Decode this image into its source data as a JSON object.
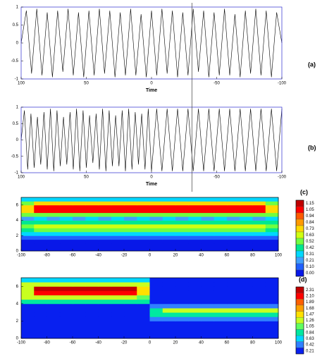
{
  "cursor_x": -31,
  "chart_data": [
    {
      "type": "line",
      "label": "(a)",
      "xlabel": "Time",
      "color": "#000000",
      "xlim": [
        100,
        -100
      ],
      "xticks": [
        100,
        50,
        0,
        -50,
        -100
      ],
      "ylim": [
        -1,
        1
      ],
      "yticks": [
        1,
        0.5,
        0,
        -0.5,
        -1
      ],
      "x": [
        100,
        96,
        92,
        88,
        84,
        80,
        76,
        72,
        68,
        64,
        60,
        56,
        52,
        48,
        44,
        40,
        36,
        32,
        28,
        24,
        20,
        16,
        12,
        8,
        4,
        0,
        -4,
        -8,
        -12,
        -16,
        -20,
        -24,
        -28,
        -32,
        -36,
        -40,
        -44,
        -48,
        -52,
        -56,
        -60,
        -64,
        -68,
        -72,
        -76,
        -80,
        -84,
        -88,
        -92,
        -96,
        -100
      ],
      "values": [
        0,
        0.9,
        -0.85,
        0.95,
        -0.9,
        0.85,
        -0.95,
        0.9,
        -0.8,
        0.95,
        -0.9,
        0.85,
        -0.95,
        0.9,
        -0.9,
        0.95,
        -0.85,
        0.9,
        -0.95,
        0.85,
        -0.9,
        0.95,
        -0.9,
        0.8,
        -0.95,
        0.9,
        -0.9,
        0.95,
        -0.85,
        0.9,
        -0.95,
        0.85,
        -0.9,
        0.95,
        -0.8,
        0.9,
        -0.95,
        0.85,
        -0.9,
        0.95,
        -0.9,
        0.8,
        -0.95,
        0.9,
        -0.85,
        0.95,
        -0.9,
        0.9,
        -0.95,
        0.85,
        0
      ]
    },
    {
      "type": "line",
      "label": "(b)",
      "xlabel": "Time",
      "color": "#000000",
      "xlim": [
        100,
        -100
      ],
      "xticks": [
        100,
        50,
        0,
        -50,
        -100
      ],
      "ylim": [
        -1,
        1
      ],
      "yticks": [
        1,
        0.5,
        0,
        -0.5,
        -1
      ],
      "x": [
        100,
        97.5,
        95,
        92.5,
        90,
        87.5,
        85,
        82.5,
        80,
        77.5,
        75,
        72.5,
        70,
        67.5,
        65,
        62.5,
        60,
        57.5,
        55,
        52.5,
        50,
        47.5,
        45,
        42.5,
        40,
        37.5,
        35,
        32.5,
        30,
        27.5,
        25,
        22.5,
        20,
        17.5,
        15,
        12.5,
        10,
        7.5,
        5,
        2.5,
        0,
        -4,
        -8,
        -12,
        -16,
        -20,
        -24,
        -28,
        -32,
        -36,
        -40,
        -44,
        -48,
        -52,
        -56,
        -60,
        -64,
        -68,
        -72,
        -76,
        -80,
        -84,
        -88,
        -92,
        -96,
        -100
      ],
      "values": [
        0,
        0.9,
        -0.9,
        0.8,
        -0.85,
        0.7,
        -0.75,
        0.85,
        -0.9,
        0.95,
        -0.95,
        0.9,
        -0.8,
        0.7,
        -0.75,
        0.85,
        -0.9,
        0.95,
        -0.95,
        0.9,
        -0.85,
        0.75,
        -0.7,
        0.8,
        -0.9,
        0.95,
        -0.95,
        0.9,
        -0.8,
        0.75,
        -0.8,
        0.9,
        -0.95,
        0.95,
        -0.9,
        0.85,
        -0.75,
        0.8,
        -0.9,
        0.95,
        -0.95,
        0.95,
        -0.95,
        0.95,
        -0.95,
        0.95,
        -0.95,
        0.95,
        -0.95,
        0.95,
        -0.95,
        0.95,
        -0.95,
        0.95,
        -0.95,
        0.95,
        -0.95,
        0.95,
        -0.95,
        0.95,
        -0.95,
        0.95,
        -0.95,
        0.95,
        -0.95,
        0.95
      ]
    },
    {
      "type": "heatmap",
      "label": "(c)",
      "xlim": [
        -100,
        100
      ],
      "xticks": [
        -100,
        -80,
        -60,
        -40,
        -20,
        0,
        20,
        40,
        60,
        80,
        100
      ],
      "ylim": [
        0,
        7
      ],
      "yticks": [
        0,
        2,
        4,
        6
      ],
      "x": [
        -95,
        -85,
        -75,
        -65,
        -55,
        -45,
        -35,
        -25,
        -15,
        -5,
        5,
        15,
        25,
        35,
        45,
        55,
        65,
        75,
        85,
        95
      ],
      "y": [
        0.25,
        0.75,
        1.25,
        1.75,
        2.25,
        2.75,
        3.25,
        3.75,
        4.25,
        4.75,
        5.25,
        5.75,
        6.25,
        6.75
      ],
      "z": [
        [
          0.05,
          0.05,
          0.05,
          0.05,
          0.05,
          0.05,
          0.05,
          0.05,
          0.05,
          0.05,
          0.05,
          0.05,
          0.05,
          0.05,
          0.05,
          0.05,
          0.05,
          0.05,
          0.05,
          0.05
        ],
        [
          0.05,
          0.05,
          0.05,
          0.05,
          0.05,
          0.05,
          0.05,
          0.05,
          0.05,
          0.05,
          0.05,
          0.05,
          0.05,
          0.05,
          0.05,
          0.05,
          0.05,
          0.05,
          0.05,
          0.05
        ],
        [
          0.05,
          0.05,
          0.05,
          0.05,
          0.05,
          0.05,
          0.05,
          0.05,
          0.05,
          0.05,
          0.05,
          0.05,
          0.05,
          0.05,
          0.05,
          0.05,
          0.05,
          0.05,
          0.05,
          0.05
        ],
        [
          0.15,
          0.15,
          0.15,
          0.15,
          0.15,
          0.15,
          0.15,
          0.15,
          0.15,
          0.15,
          0.15,
          0.15,
          0.15,
          0.15,
          0.15,
          0.15,
          0.15,
          0.15,
          0.15,
          0.15
        ],
        [
          0.35,
          0.35,
          0.35,
          0.35,
          0.35,
          0.35,
          0.35,
          0.35,
          0.35,
          0.35,
          0.35,
          0.35,
          0.35,
          0.35,
          0.35,
          0.35,
          0.35,
          0.35,
          0.35,
          0.35
        ],
        [
          0.5,
          0.6,
          0.6,
          0.6,
          0.6,
          0.6,
          0.6,
          0.6,
          0.6,
          0.6,
          0.6,
          0.6,
          0.6,
          0.6,
          0.6,
          0.6,
          0.6,
          0.6,
          0.6,
          0.5
        ],
        [
          0.55,
          0.65,
          0.65,
          0.65,
          0.65,
          0.65,
          0.65,
          0.65,
          0.65,
          0.65,
          0.65,
          0.65,
          0.65,
          0.65,
          0.65,
          0.65,
          0.65,
          0.65,
          0.65,
          0.55
        ],
        [
          0.45,
          0.45,
          0.45,
          0.45,
          0.45,
          0.45,
          0.45,
          0.45,
          0.45,
          0.45,
          0.45,
          0.45,
          0.45,
          0.45,
          0.45,
          0.45,
          0.45,
          0.45,
          0.45,
          0.45
        ],
        [
          0.3,
          0.4,
          0.3,
          0.4,
          0.3,
          0.4,
          0.3,
          0.4,
          0.3,
          0.4,
          0.3,
          0.4,
          0.3,
          0.4,
          0.3,
          0.4,
          0.3,
          0.4,
          0.3,
          0.4
        ],
        [
          0.55,
          0.6,
          0.6,
          0.6,
          0.6,
          0.6,
          0.6,
          0.6,
          0.6,
          0.6,
          0.6,
          0.6,
          0.6,
          0.6,
          0.6,
          0.6,
          0.6,
          0.6,
          0.6,
          0.55
        ],
        [
          0.75,
          1.1,
          1.1,
          1.1,
          1.1,
          1.1,
          1.1,
          1.1,
          1.1,
          1.1,
          1.1,
          1.1,
          1.1,
          1.1,
          1.1,
          1.1,
          1.1,
          1.1,
          1.1,
          0.75
        ],
        [
          0.8,
          1.12,
          1.12,
          1.12,
          1.12,
          1.12,
          1.12,
          1.12,
          1.12,
          1.12,
          1.12,
          1.12,
          1.12,
          1.12,
          1.12,
          1.12,
          1.12,
          1.12,
          1.12,
          0.8
        ],
        [
          0.6,
          0.75,
          0.75,
          0.75,
          0.75,
          0.75,
          0.75,
          0.75,
          0.75,
          0.75,
          0.75,
          0.75,
          0.75,
          0.75,
          0.75,
          0.75,
          0.75,
          0.75,
          0.75,
          0.6
        ],
        [
          0.4,
          0.4,
          0.4,
          0.4,
          0.4,
          0.4,
          0.4,
          0.4,
          0.4,
          0.4,
          0.4,
          0.4,
          0.4,
          0.4,
          0.4,
          0.4,
          0.4,
          0.4,
          0.4,
          0.4
        ]
      ],
      "levels": [
        1.15,
        1.05,
        0.94,
        0.84,
        0.73,
        0.63,
        0.52,
        0.42,
        0.31,
        0.21,
        {
          "value": 0.1,
          "label": "0.10"
        },
        {
          "value": 0,
          "label": "0.00"
        }
      ],
      "colors": [
        "#c00000",
        "#ff0000",
        "#ff5a00",
        "#ff9a00",
        "#ffd800",
        "#d0ff10",
        "#70ff40",
        "#00e890",
        "#00d8ff",
        "#40a0ff",
        "#2060ff",
        "#0818e8"
      ]
    },
    {
      "type": "heatmap",
      "label": "(d)",
      "xlim": [
        -100,
        100
      ],
      "xticks": [
        -100,
        -80,
        -60,
        -40,
        -20,
        0,
        20,
        40,
        60,
        80,
        100
      ],
      "ylim": [
        0,
        7
      ],
      "yticks": [
        0,
        2,
        4,
        6
      ],
      "x": [
        -95,
        -85,
        -75,
        -65,
        -55,
        -45,
        -35,
        -25,
        -15,
        -5,
        5,
        15,
        25,
        35,
        45,
        55,
        65,
        75,
        85,
        95
      ],
      "y": [
        0.25,
        0.75,
        1.25,
        1.75,
        2.25,
        2.75,
        3.25,
        3.75,
        4.25,
        4.75,
        5.25,
        5.75,
        6.25,
        6.75
      ],
      "z": [
        [
          0.3,
          0.3,
          0.3,
          0.3,
          0.3,
          0.3,
          0.3,
          0.3,
          0.3,
          0.3,
          0.3,
          0.3,
          0.3,
          0.3,
          0.3,
          0.3,
          0.3,
          0.3,
          0.3,
          0.3
        ],
        [
          0.3,
          0.3,
          0.3,
          0.3,
          0.3,
          0.3,
          0.3,
          0.3,
          0.3,
          0.3,
          0.3,
          0.3,
          0.3,
          0.3,
          0.3,
          0.3,
          0.3,
          0.3,
          0.3,
          0.3
        ],
        [
          0.3,
          0.3,
          0.3,
          0.3,
          0.3,
          0.3,
          0.3,
          0.3,
          0.3,
          0.3,
          0.3,
          0.3,
          0.3,
          0.3,
          0.3,
          0.3,
          0.3,
          0.3,
          0.3,
          0.3
        ],
        [
          0.3,
          0.3,
          0.3,
          0.3,
          0.3,
          0.3,
          0.3,
          0.3,
          0.3,
          0.3,
          0.3,
          0.3,
          0.3,
          0.3,
          0.3,
          0.3,
          0.3,
          0.3,
          0.3,
          0.3
        ],
        [
          0.3,
          0.3,
          0.3,
          0.3,
          0.3,
          0.3,
          0.3,
          0.3,
          0.3,
          0.3,
          0.5,
          0.5,
          0.5,
          0.5,
          0.5,
          0.5,
          0.5,
          0.5,
          0.5,
          0.5
        ],
        [
          0.4,
          0.4,
          0.4,
          0.4,
          0.4,
          0.4,
          0.4,
          0.4,
          0.4,
          0.4,
          1.0,
          1.0,
          1.0,
          1.0,
          1.0,
          1.0,
          1.0,
          1.0,
          1.0,
          1.0
        ],
        [
          0.4,
          0.4,
          0.4,
          0.4,
          0.4,
          0.4,
          0.4,
          0.4,
          0.4,
          0.4,
          0.9,
          1.4,
          1.4,
          1.4,
          1.4,
          1.4,
          1.4,
          1.4,
          1.4,
          1.4
        ],
        [
          0.4,
          0.4,
          0.4,
          0.4,
          0.4,
          0.4,
          0.4,
          0.4,
          0.4,
          0.4,
          0.6,
          0.6,
          0.6,
          0.6,
          0.6,
          0.6,
          0.6,
          0.6,
          0.6,
          0.6
        ],
        [
          0.9,
          0.9,
          0.9,
          0.9,
          0.9,
          0.9,
          0.9,
          0.9,
          0.9,
          0.9,
          0.3,
          0.3,
          0.3,
          0.3,
          0.3,
          0.3,
          0.3,
          0.3,
          0.3,
          0.3
        ],
        [
          1.3,
          1.3,
          1.3,
          1.3,
          1.3,
          1.3,
          1.3,
          1.3,
          1.3,
          1.1,
          0.3,
          0.3,
          0.3,
          0.3,
          0.3,
          0.3,
          0.3,
          0.3,
          0.3,
          0.3
        ],
        [
          1.4,
          2.2,
          2.2,
          2.2,
          2.2,
          2.2,
          2.2,
          2.2,
          2.2,
          1.6,
          0.3,
          0.3,
          0.3,
          0.3,
          0.3,
          0.3,
          0.3,
          0.3,
          0.3,
          0.3
        ],
        [
          1.4,
          2.35,
          2.35,
          2.35,
          2.35,
          2.35,
          2.35,
          2.35,
          2.35,
          1.6,
          0.3,
          0.3,
          0.3,
          0.3,
          0.3,
          0.3,
          0.3,
          0.3,
          0.3,
          0.3
        ],
        [
          1.3,
          1.3,
          1.3,
          1.3,
          1.3,
          1.3,
          1.3,
          1.3,
          1.3,
          1.3,
          0.3,
          0.3,
          0.3,
          0.3,
          0.3,
          0.3,
          0.3,
          0.3,
          0.3,
          0.3
        ],
        [
          0.8,
          0.8,
          0.8,
          0.8,
          0.8,
          0.8,
          0.8,
          0.8,
          0.8,
          0.8,
          0.3,
          0.3,
          0.3,
          0.3,
          0.3,
          0.3,
          0.3,
          0.3,
          0.3,
          0.3
        ]
      ],
      "levels": [
        2.31,
        {
          "value": 2.1,
          "label": "2.10"
        },
        1.89,
        1.68,
        1.47,
        1.26,
        1.05,
        0.84,
        0.63,
        0.42,
        0.21
      ],
      "colors": [
        "#c00000",
        "#ff0000",
        "#ff6000",
        "#ffa000",
        "#ffe000",
        "#c8ff20",
        "#60ff60",
        "#00e8a0",
        "#00d8ff",
        "#3080ff",
        "#0820f0"
      ]
    }
  ]
}
